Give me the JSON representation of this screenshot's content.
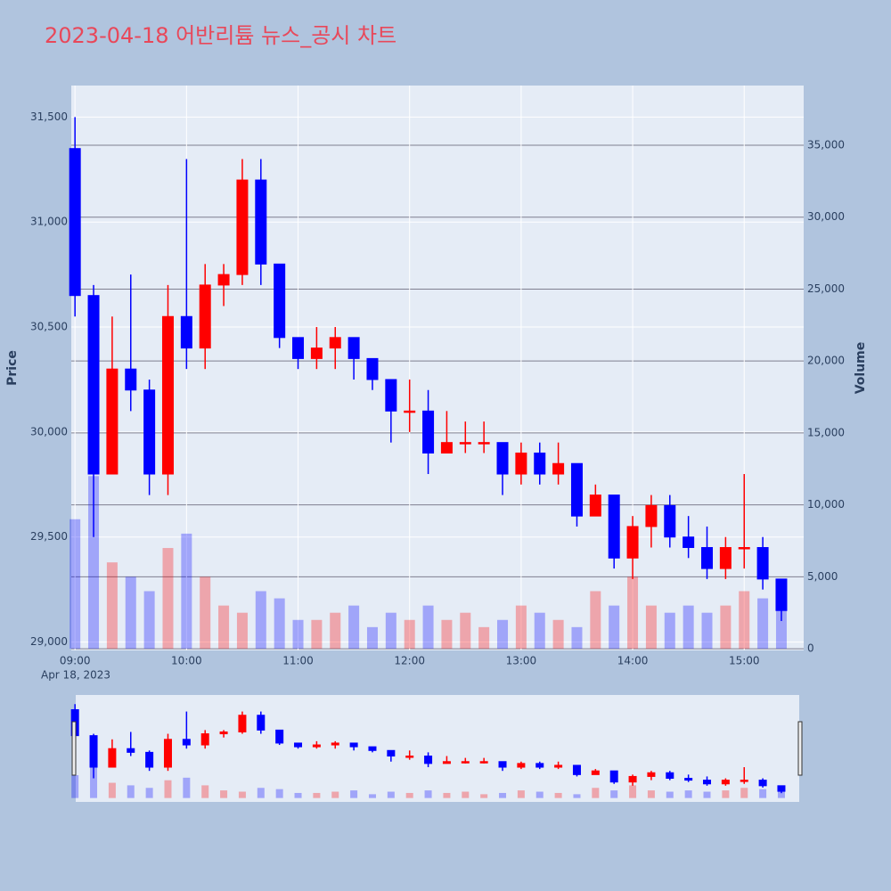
{
  "chart_data": {
    "type": "candlestick",
    "title": "2023-04-18 어반리튬 뉴스_공시 차트",
    "ylabel": "Price",
    "y2label": "Volume",
    "x_date_label": "Apr 18, 2023",
    "x": [
      "09:00",
      "09:10",
      "09:20",
      "09:30",
      "09:40",
      "09:50",
      "10:00",
      "10:10",
      "10:20",
      "10:30",
      "10:40",
      "10:50",
      "11:00",
      "11:10",
      "11:20",
      "11:30",
      "11:40",
      "11:50",
      "12:00",
      "12:10",
      "12:20",
      "12:30",
      "12:40",
      "12:50",
      "13:00",
      "13:10",
      "13:20",
      "13:30",
      "13:40",
      "13:50",
      "14:00",
      "14:10",
      "14:20",
      "14:30",
      "14:40",
      "14:50",
      "15:00",
      "15:10",
      "15:20"
    ],
    "open": [
      31350,
      30650,
      29800,
      30300,
      30200,
      29800,
      30550,
      30400,
      30700,
      30750,
      31200,
      30800,
      30450,
      30350,
      30400,
      30450,
      30350,
      30250,
      30100,
      30100,
      29900,
      29950,
      29950,
      29950,
      29800,
      29900,
      29800,
      29850,
      29600,
      29700,
      29400,
      29550,
      29650,
      29500,
      29450,
      29350,
      29450,
      29450,
      29300
    ],
    "high": [
      31500,
      30700,
      30550,
      30750,
      30250,
      30700,
      31300,
      30800,
      30800,
      31300,
      31300,
      30800,
      30450,
      30500,
      30500,
      30450,
      30350,
      30250,
      30250,
      30200,
      30100,
      30050,
      30050,
      29950,
      29950,
      29950,
      29950,
      29850,
      29750,
      29700,
      29600,
      29700,
      29700,
      29600,
      29550,
      29500,
      29800,
      29500,
      29300
    ],
    "low": [
      30550,
      29500,
      29800,
      30100,
      29700,
      29700,
      30300,
      30300,
      30600,
      30700,
      30700,
      30400,
      30300,
      30300,
      30300,
      30250,
      30200,
      29950,
      30000,
      29800,
      29900,
      29900,
      29900,
      29700,
      29750,
      29750,
      29750,
      29550,
      29600,
      29350,
      29300,
      29450,
      29450,
      29400,
      29300,
      29300,
      29350,
      29250,
      29100
    ],
    "close": [
      30650,
      29800,
      30300,
      30200,
      29800,
      30550,
      30400,
      30700,
      30750,
      31200,
      30800,
      30450,
      30350,
      30400,
      30450,
      30350,
      30250,
      30100,
      30100,
      29900,
      29950,
      29950,
      29950,
      29800,
      29900,
      29800,
      29850,
      29600,
      29700,
      29400,
      29550,
      29650,
      29500,
      29450,
      29350,
      29450,
      29450,
      29300,
      29150
    ],
    "volume": [
      9000,
      12000,
      6000,
      5000,
      4000,
      7000,
      8000,
      5000,
      3000,
      2500,
      4000,
      3500,
      2000,
      2000,
      2500,
      3000,
      1500,
      2500,
      2000,
      3000,
      2000,
      2500,
      1500,
      2000,
      3000,
      2500,
      2000,
      1500,
      4000,
      3000,
      5000,
      3000,
      2500,
      3000,
      2500,
      3000,
      4000,
      3500,
      3000
    ],
    "increasing_color": "#ff0000",
    "decreasing_color": "#0000ff",
    "xlim": [
      "08:58",
      "15:32"
    ],
    "xticks": [
      "09:00",
      "10:00",
      "11:00",
      "12:00",
      "13:00",
      "14:00",
      "15:00"
    ],
    "ylim": [
      28960,
      31650
    ],
    "yticks": [
      {
        "value": 29000,
        "label": "29,000"
      },
      {
        "value": 29500,
        "label": "29,500"
      },
      {
        "value": 30000,
        "label": "30,000"
      },
      {
        "value": 30500,
        "label": "30,500"
      },
      {
        "value": 31000,
        "label": "31,000"
      },
      {
        "value": 31500,
        "label": "31,500"
      }
    ],
    "y2lim": [
      -120,
      39150
    ],
    "y2ticks": [
      0,
      {
        "value": 5000,
        "label": "5,000"
      },
      {
        "value": 10000,
        "label": "10,000"
      },
      {
        "value": 15000,
        "label": "15,000"
      },
      {
        "value": 20000,
        "label": "20,000"
      },
      {
        "value": 25000,
        "label": "25,000"
      },
      {
        "value": 30000,
        "label": "30,000"
      },
      {
        "value": 35000,
        "label": "35,000"
      }
    ],
    "grid": true
  }
}
